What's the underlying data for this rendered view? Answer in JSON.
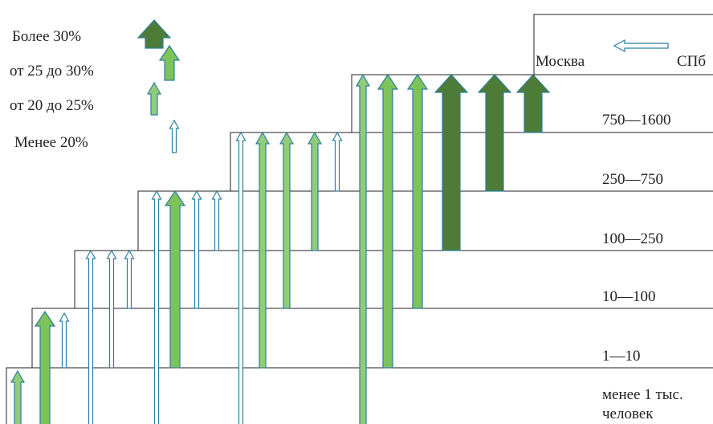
{
  "legend": [
    "Более 30%",
    "от 25 до 30%",
    "от 20 до 25%",
    "Менее 20%"
  ],
  "cities": [
    "Москва",
    "СПб"
  ],
  "levels": [
    "750—1600",
    "250—750",
    "100—250",
    "10—100",
    "1—10"
  ],
  "bottom_level": [
    "менее 1 тыс.",
    "человек"
  ]
}
